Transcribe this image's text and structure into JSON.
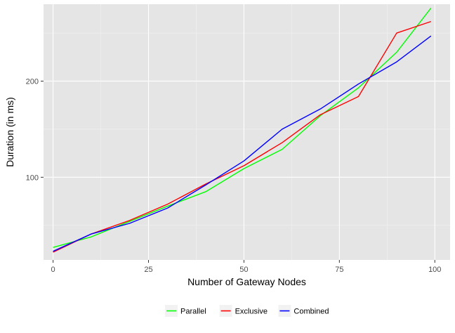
{
  "chart_data": {
    "type": "line",
    "title": "",
    "xlabel": "Number of Gateway Nodes",
    "ylabel": "Duration (in ms)",
    "xlim": [
      -2.5,
      104
    ],
    "ylim": [
      14,
      280
    ],
    "x_ticks": [
      0,
      25,
      50,
      75,
      100
    ],
    "x_tick_labels": [
      "0",
      "25",
      "50",
      "75",
      "100"
    ],
    "y_ticks": [
      100,
      200
    ],
    "y_tick_labels": [
      "100",
      "200"
    ],
    "grid": true,
    "legend_position": "bottom",
    "background": "#e5e5e5",
    "series": [
      {
        "name": "Parallel",
        "color": "#00ff00",
        "x": [
          0,
          10,
          20,
          30,
          40,
          50,
          60,
          70,
          80,
          90,
          99
        ],
        "y": [
          27,
          38,
          54,
          70,
          85,
          109,
          129,
          164,
          193,
          230,
          276
        ]
      },
      {
        "name": "Exclusive",
        "color": "#ff0000",
        "x": [
          0,
          10,
          20,
          30,
          40,
          50,
          60,
          70,
          80,
          90,
          99
        ],
        "y": [
          22,
          41,
          55,
          72,
          93,
          112,
          136,
          165,
          184,
          250,
          262
        ]
      },
      {
        "name": "Combined",
        "color": "#0000ff",
        "x": [
          0,
          10,
          20,
          30,
          40,
          50,
          60,
          70,
          80,
          90,
          99
        ],
        "y": [
          23,
          41,
          52,
          68,
          92,
          117,
          150,
          171,
          197,
          220,
          247
        ]
      }
    ]
  }
}
